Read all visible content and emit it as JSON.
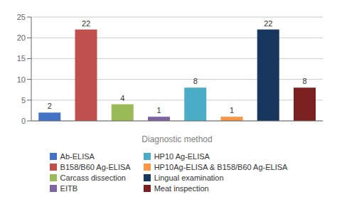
{
  "chart_data": {
    "type": "bar",
    "categories": [
      "Ab-ELISA",
      "B158/B60 Ag-ELISA",
      "Carcass dissection",
      "EITB",
      "HP10 Ag-ELISA",
      "HP10Ag-ELISA & B158/B60 Ag-ELISA",
      "Lingual examination",
      "Meat inspection"
    ],
    "values": [
      2,
      22,
      4,
      1,
      8,
      1,
      22,
      8
    ],
    "colors": [
      "#4472C4",
      "#C0504D",
      "#9BBB59",
      "#8064A2",
      "#4BACC6",
      "#F79646",
      "#17375E",
      "#7B2020"
    ],
    "xlabel": "Diagnostic method",
    "ylim": [
      0,
      25
    ],
    "yticks": [
      0,
      5,
      10,
      15,
      20,
      25
    ],
    "grid": true,
    "data_labels": true,
    "tick_labels": "y",
    "legend": "bottom"
  }
}
